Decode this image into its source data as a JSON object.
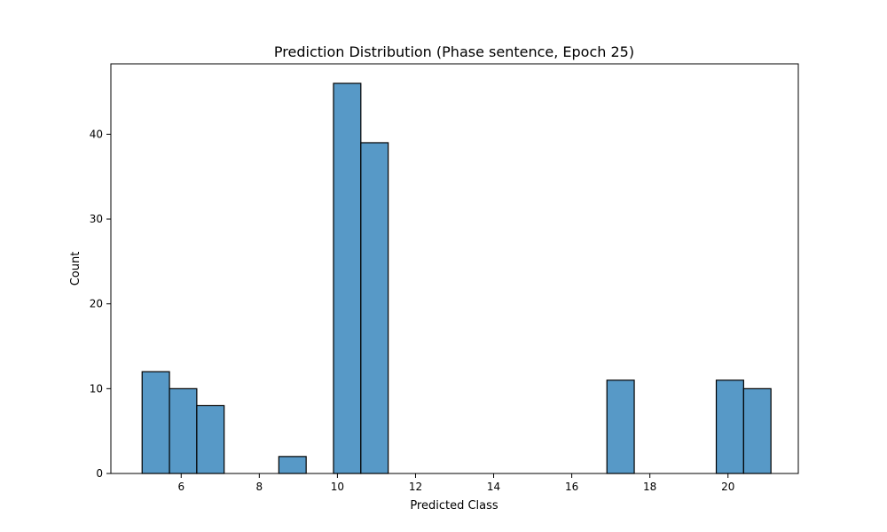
{
  "chart_data": {
    "type": "bar",
    "title": "Prediction Distribution (Phase sentence, Epoch 25)",
    "xlabel": "Predicted Class",
    "ylabel": "Count",
    "xlim": [
      4.2,
      21.8
    ],
    "ylim": [
      0,
      48.3
    ],
    "xticks": [
      6,
      8,
      10,
      12,
      14,
      16,
      18,
      20
    ],
    "yticks": [
      0,
      10,
      20,
      30,
      40
    ],
    "bin_width": 0.7,
    "bars": [
      {
        "x0": 5.0,
        "value": 12
      },
      {
        "x0": 5.7,
        "value": 10
      },
      {
        "x0": 6.4,
        "value": 8
      },
      {
        "x0": 8.5,
        "value": 2
      },
      {
        "x0": 9.9,
        "value": 46
      },
      {
        "x0": 10.6,
        "value": 39
      },
      {
        "x0": 16.9,
        "value": 11
      },
      {
        "x0": 19.7,
        "value": 11
      },
      {
        "x0": 20.4,
        "value": 10
      }
    ],
    "bar_color": "#5799c7",
    "grid": false,
    "legend": "none"
  }
}
